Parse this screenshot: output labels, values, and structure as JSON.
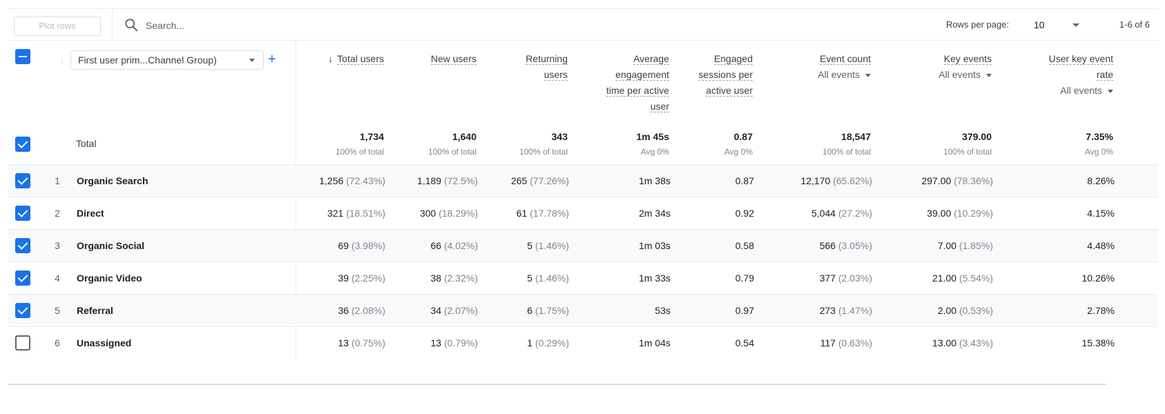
{
  "toolbar": {
    "plot_rows_label": "Plot rows",
    "search_placeholder": "Search...",
    "rows_per_page_label": "Rows per page:",
    "rows_per_page_value": "10",
    "pagination_text": "1-6 of 6"
  },
  "dimension": {
    "selector_label": "First user prim...Channel Group)",
    "add_icon": "plus-icon"
  },
  "columns": [
    {
      "key": "total_users",
      "label": "Total users",
      "sorted": true
    },
    {
      "key": "new_users",
      "label": "New users"
    },
    {
      "key": "returning_users",
      "label": "Returning users"
    },
    {
      "key": "avg_engagement",
      "label": "Average engagement time per active user"
    },
    {
      "key": "engaged_sessions",
      "label": "Engaged sessions per active user"
    },
    {
      "key": "event_count",
      "label": "Event count",
      "filter": "All events"
    },
    {
      "key": "key_events",
      "label": "Key events",
      "filter": "All events"
    },
    {
      "key": "user_key_event_rate",
      "label": "User key event rate",
      "filter": "All events"
    }
  ],
  "total": {
    "label": "Total",
    "values": [
      {
        "v": "1,734",
        "s": "100% of total"
      },
      {
        "v": "1,640",
        "s": "100% of total"
      },
      {
        "v": "343",
        "s": "100% of total"
      },
      {
        "v": "1m 45s",
        "s": "Avg 0%"
      },
      {
        "v": "0.87",
        "s": "Avg 0%"
      },
      {
        "v": "18,547",
        "s": "100% of total"
      },
      {
        "v": "379.00",
        "s": "100% of total"
      },
      {
        "v": "7.35%",
        "s": "Avg 0%"
      }
    ]
  },
  "rows": [
    {
      "index": "1",
      "name": "Organic Search",
      "checked": true,
      "cells": [
        [
          "1,256",
          "(72.43%)"
        ],
        [
          "1,189",
          "(72.5%)"
        ],
        [
          "265",
          "(77.26%)"
        ],
        [
          "1m 38s",
          ""
        ],
        [
          "0.87",
          ""
        ],
        [
          "12,170",
          "(65.62%)"
        ],
        [
          "297.00",
          "(78.36%)"
        ],
        [
          "8.26%",
          ""
        ]
      ]
    },
    {
      "index": "2",
      "name": "Direct",
      "checked": true,
      "cells": [
        [
          "321",
          "(18.51%)"
        ],
        [
          "300",
          "(18.29%)"
        ],
        [
          "61",
          "(17.78%)"
        ],
        [
          "2m 34s",
          ""
        ],
        [
          "0.92",
          ""
        ],
        [
          "5,044",
          "(27.2%)"
        ],
        [
          "39.00",
          "(10.29%)"
        ],
        [
          "4.15%",
          ""
        ]
      ]
    },
    {
      "index": "3",
      "name": "Organic Social",
      "checked": true,
      "cells": [
        [
          "69",
          "(3.98%)"
        ],
        [
          "66",
          "(4.02%)"
        ],
        [
          "5",
          "(1.46%)"
        ],
        [
          "1m 03s",
          ""
        ],
        [
          "0.58",
          ""
        ],
        [
          "566",
          "(3.05%)"
        ],
        [
          "7.00",
          "(1.85%)"
        ],
        [
          "4.48%",
          ""
        ]
      ]
    },
    {
      "index": "4",
      "name": "Organic Video",
      "checked": true,
      "cells": [
        [
          "39",
          "(2.25%)"
        ],
        [
          "38",
          "(2.32%)"
        ],
        [
          "5",
          "(1.46%)"
        ],
        [
          "1m 33s",
          ""
        ],
        [
          "0.79",
          ""
        ],
        [
          "377",
          "(2.03%)"
        ],
        [
          "21.00",
          "(5.54%)"
        ],
        [
          "10.26%",
          ""
        ]
      ]
    },
    {
      "index": "5",
      "name": "Referral",
      "checked": true,
      "cells": [
        [
          "36",
          "(2.08%)"
        ],
        [
          "34",
          "(2.07%)"
        ],
        [
          "6",
          "(1.75%)"
        ],
        [
          "53s",
          ""
        ],
        [
          "0.97",
          ""
        ],
        [
          "273",
          "(1.47%)"
        ],
        [
          "2.00",
          "(0.53%)"
        ],
        [
          "2.78%",
          ""
        ]
      ]
    },
    {
      "index": "6",
      "name": "Unassigned",
      "checked": false,
      "cells": [
        [
          "13",
          "(0.75%)"
        ],
        [
          "13",
          "(0.79%)"
        ],
        [
          "1",
          "(0.29%)"
        ],
        [
          "1m 04s",
          ""
        ],
        [
          "0.54",
          ""
        ],
        [
          "117",
          "(0.63%)"
        ],
        [
          "13.00",
          "(3.43%)"
        ],
        [
          "15.38%",
          ""
        ]
      ]
    }
  ]
}
